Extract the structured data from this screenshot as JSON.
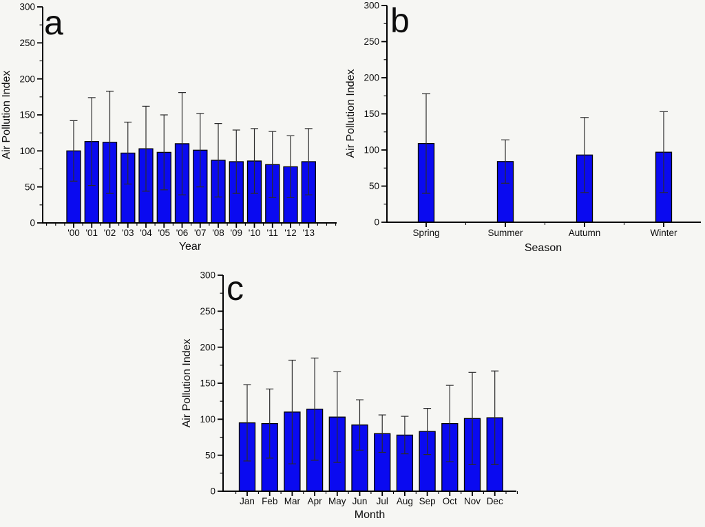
{
  "figure": {
    "background": "#f6f6f3",
    "bar_fill": "#0a0af0",
    "bar_stroke": "#000000",
    "error_color": "#2b2b2b",
    "axis_color": "#000000",
    "text_color": "#0d0d0d"
  },
  "chart_data": [
    {
      "panel_label": "a",
      "type": "bar",
      "title": "",
      "xlabel": "Year",
      "ylabel": "Air Pollution Index",
      "ylim": [
        0,
        300
      ],
      "y_ticks": [
        0,
        50,
        100,
        150,
        200,
        250,
        300
      ],
      "y_minor_step": 25,
      "grid": false,
      "legend": null,
      "error_bars": "symmetric",
      "categories": [
        "'00",
        "'01",
        "'02",
        "'03",
        "'04",
        "'05",
        "'06",
        "'07",
        "'08",
        "'09",
        "'10",
        "'11",
        "'12",
        "'13"
      ],
      "values": [
        100,
        113,
        112,
        97,
        103,
        98,
        110,
        101,
        87,
        85,
        86,
        81,
        78,
        85
      ],
      "errors": [
        42,
        61,
        71,
        43,
        59,
        52,
        71,
        51,
        51,
        44,
        45,
        46,
        43,
        46
      ]
    },
    {
      "panel_label": "b",
      "type": "bar",
      "title": "",
      "xlabel": "Season",
      "ylabel": "Air Pollution Index",
      "ylim": [
        0,
        300
      ],
      "y_ticks": [
        0,
        50,
        100,
        150,
        200,
        250,
        300
      ],
      "y_minor_step": 25,
      "grid": false,
      "legend": null,
      "error_bars": "symmetric",
      "categories": [
        "Spring",
        "Summer",
        "Autumn",
        "Winter"
      ],
      "values": [
        109,
        84,
        93,
        97
      ],
      "errors": [
        69,
        30,
        52,
        56
      ]
    },
    {
      "panel_label": "c",
      "type": "bar",
      "title": "",
      "xlabel": "Month",
      "ylabel": "Air Pollution Index",
      "ylim": [
        0,
        300
      ],
      "y_ticks": [
        0,
        50,
        100,
        150,
        200,
        250,
        300
      ],
      "y_minor_step": 25,
      "grid": false,
      "legend": null,
      "error_bars": "symmetric",
      "categories": [
        "Jan",
        "Feb",
        "Mar",
        "Apr",
        "May",
        "Jun",
        "Jul",
        "Aug",
        "Sep",
        "Oct",
        "Nov",
        "Dec"
      ],
      "values": [
        95,
        94,
        110,
        114,
        103,
        92,
        80,
        78,
        83,
        94,
        101,
        102
      ],
      "errors": [
        53,
        48,
        72,
        71,
        63,
        35,
        26,
        26,
        32,
        53,
        64,
        65
      ]
    }
  ]
}
